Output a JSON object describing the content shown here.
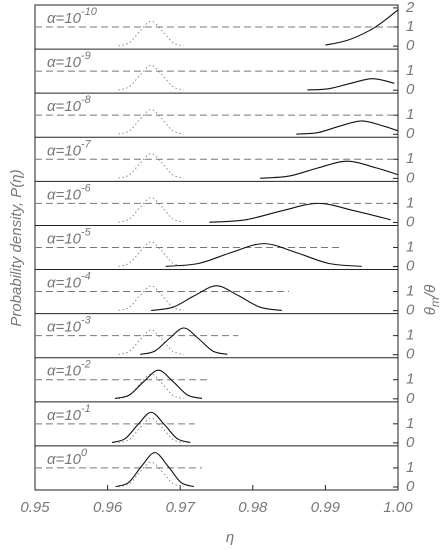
{
  "chart_data": {
    "type": "line",
    "xlabel": "η",
    "ylabel": "Probability density, P(η)",
    "y2label_parts": [
      "θ",
      "m",
      "/θ"
    ],
    "xlim": [
      0.95,
      1.0
    ],
    "xticks": [
      0.95,
      0.96,
      0.97,
      0.98,
      0.99,
      {
        "value": 1.0,
        "label": "1.00"
      }
    ],
    "reference": {
      "style": "dotted",
      "x": [
        0.9615,
        0.963,
        0.9645,
        0.966,
        0.9675,
        0.969,
        0.9705
      ],
      "values": [
        0.01,
        0.18,
        0.8,
        1.3,
        0.8,
        0.18,
        0.01
      ]
    },
    "panels": [
      {
        "label": "α=10",
        "exponent": "-10",
        "y2lim": [
          0,
          2.1
        ],
        "y2ticks": [
          0,
          1,
          2
        ],
        "pdf": {
          "x": [
            0.99,
            0.993,
            0.996,
            0.998,
            1.0
          ],
          "values": [
            0.05,
            0.3,
            0.8,
            1.3,
            1.9
          ]
        },
        "theta": {
          "x": [
            0.95,
            1.0
          ],
          "values": [
            1,
            1
          ]
        }
      },
      {
        "label": "α=10",
        "exponent": "-9",
        "y2lim": [
          0,
          2.1
        ],
        "y2ticks": [
          0,
          1
        ],
        "pdf": {
          "x": [
            0.9875,
            0.9905,
            0.9935,
            0.9965,
            0.9995
          ],
          "values": [
            0.01,
            0.08,
            0.36,
            0.6,
            0.36
          ]
        },
        "theta": {
          "x": [
            0.95,
            1.0
          ],
          "values": [
            1,
            1
          ]
        }
      },
      {
        "label": "α=10",
        "exponent": "-8",
        "y2lim": [
          0,
          2.1
        ],
        "y2ticks": [
          0,
          1
        ],
        "pdf": {
          "x": [
            0.986,
            0.989,
            0.992,
            0.995,
            0.998,
            1.0
          ],
          "values": [
            0.01,
            0.09,
            0.43,
            0.7,
            0.43,
            0.18
          ]
        },
        "theta": {
          "x": [
            0.95,
            1.0
          ],
          "values": [
            1,
            1
          ]
        }
      },
      {
        "label": "α=10",
        "exponent": "-7",
        "y2lim": [
          0,
          2.1
        ],
        "y2ticks": [
          0,
          1
        ],
        "pdf": {
          "x": [
            0.981,
            0.985,
            0.989,
            0.993,
            0.997,
            1.0
          ],
          "values": [
            0.01,
            0.12,
            0.55,
            0.9,
            0.55,
            0.19
          ]
        },
        "theta": {
          "x": [
            0.95,
            1.0
          ],
          "values": [
            1,
            1
          ]
        }
      },
      {
        "label": "α=10",
        "exponent": "-6",
        "y2lim": [
          0,
          2.1
        ],
        "y2ticks": [
          0,
          1
        ],
        "pdf": {
          "x": [
            0.974,
            0.979,
            0.984,
            0.989,
            0.994,
            0.999
          ],
          "values": [
            0.01,
            0.14,
            0.61,
            1.0,
            0.61,
            0.14
          ]
        },
        "theta": {
          "x": [
            0.95,
            0.999
          ],
          "values": [
            1,
            1
          ]
        }
      },
      {
        "label": "α=10",
        "exponent": "-5",
        "y2lim": [
          0,
          2.1
        ],
        "y2ticks": [
          0,
          1
        ],
        "pdf": {
          "x": [
            0.968,
            0.9725,
            0.977,
            0.9815,
            0.986,
            0.9905,
            0.995
          ],
          "values": [
            0.01,
            0.16,
            0.73,
            1.2,
            0.73,
            0.16,
            0.01
          ]
        },
        "theta": {
          "x": [
            0.95,
            0.992
          ],
          "values": [
            1,
            1
          ]
        }
      },
      {
        "label": "α=10",
        "exponent": "-4",
        "y2lim": [
          0,
          2.1
        ],
        "y2ticks": [
          0,
          1
        ],
        "pdf": {
          "x": [
            0.966,
            0.969,
            0.972,
            0.975,
            0.978,
            0.981,
            0.984
          ],
          "values": [
            0.01,
            0.18,
            0.79,
            1.3,
            0.79,
            0.18,
            0.01
          ]
        },
        "theta": {
          "x": [
            0.95,
            0.985
          ],
          "values": [
            1,
            1
          ]
        }
      },
      {
        "label": "α=10",
        "exponent": "-3",
        "y2lim": [
          0,
          2.1
        ],
        "y2ticks": [
          0,
          1
        ],
        "pdf": {
          "x": [
            0.9645,
            0.9665,
            0.9685,
            0.9705,
            0.9725,
            0.9745,
            0.9765
          ],
          "values": [
            0.02,
            0.19,
            0.85,
            1.4,
            0.85,
            0.19,
            0.02
          ]
        },
        "theta": {
          "x": [
            0.95,
            0.978
          ],
          "values": [
            1,
            1
          ]
        }
      },
      {
        "label": "α=10",
        "exponent": "-2",
        "y2lim": [
          0,
          2.1
        ],
        "y2ticks": [
          0,
          1
        ],
        "pdf": {
          "x": [
            0.961,
            0.963,
            0.965,
            0.967,
            0.969,
            0.971,
            0.973
          ],
          "values": [
            0.02,
            0.2,
            0.91,
            1.5,
            0.91,
            0.2,
            0.02
          ]
        },
        "theta": {
          "x": [
            0.95,
            0.974
          ],
          "values": [
            1,
            1
          ]
        }
      },
      {
        "label": "α=10",
        "exponent": "-1",
        "y2lim": [
          0,
          2.1
        ],
        "y2ticks": [
          0,
          1
        ],
        "pdf": {
          "x": [
            0.9606,
            0.9624,
            0.9642,
            0.966,
            0.9678,
            0.9696,
            0.9714
          ],
          "values": [
            0.02,
            0.22,
            0.97,
            1.6,
            0.97,
            0.22,
            0.02
          ]
        },
        "theta": {
          "x": [
            0.95,
            0.972
          ],
          "values": [
            1,
            1
          ]
        }
      },
      {
        "label": "α=10",
        "exponent": "0",
        "y2lim": [
          0,
          2.1
        ],
        "y2ticks": [
          0,
          1
        ],
        "pdf": {
          "x": [
            0.9611,
            0.9629,
            0.9647,
            0.9665,
            0.9683,
            0.9701,
            0.9719
          ],
          "values": [
            0.02,
            0.24,
            1.1,
            1.8,
            1.1,
            0.24,
            0.02
          ]
        },
        "theta": {
          "x": [
            0.95,
            0.973
          ],
          "values": [
            1,
            1
          ]
        }
      }
    ]
  }
}
